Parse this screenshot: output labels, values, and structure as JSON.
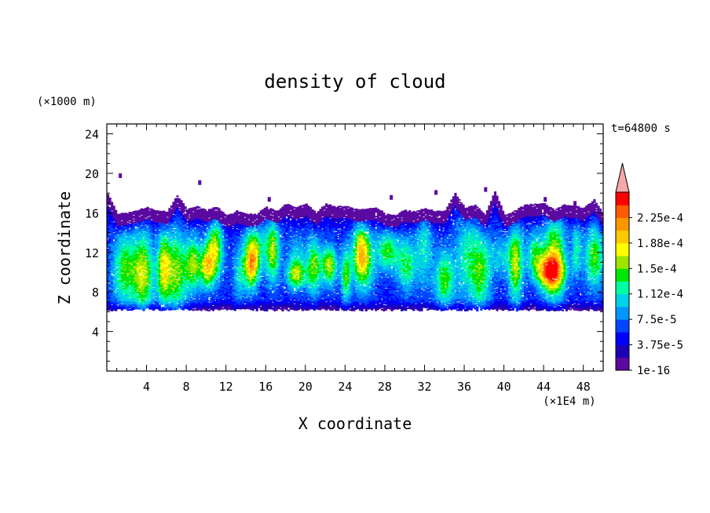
{
  "chart_data": {
    "type": "heatmap",
    "title": "density of cloud",
    "xlabel": "X coordinate",
    "ylabel": "Z coordinate",
    "x_unit": "(×1E4 m)",
    "y_unit": "(×1000 m)",
    "time_label": "t=64800 s",
    "xlim": [
      0,
      50
    ],
    "ylim": [
      0,
      25
    ],
    "x_ticks": [
      4,
      8,
      12,
      16,
      20,
      24,
      28,
      32,
      36,
      40,
      44,
      48
    ],
    "x_tick_labels": [
      "4",
      "8",
      "12",
      "16",
      "20",
      "24",
      "28",
      "32",
      "36",
      "40",
      "44",
      "48"
    ],
    "y_ticks": [
      4,
      8,
      12,
      16,
      20,
      24
    ],
    "y_tick_labels": [
      "4",
      "8",
      "12",
      "16",
      "20",
      "24"
    ],
    "cloud_base": 6.2,
    "cloud_top_typical": 16.3,
    "colorbar": {
      "levels": [
        1e-16,
        1.875e-05,
        3.75e-05,
        5.625e-05,
        7.5e-05,
        9.375e-05,
        0.0001125,
        0.00013125,
        0.00015,
        0.00016875,
        0.0001875,
        0.00020625,
        0.000225,
        0.00024375
      ],
      "labels": [
        "1e-16",
        "3.75e-5",
        "7.5e-5",
        "1.12e-4",
        "1.5e-4",
        "1.88e-4",
        "2.25e-4"
      ],
      "label_level_index": [
        0,
        2,
        4,
        6,
        8,
        10,
        12
      ],
      "colors": [
        "#5a0aa0",
        "#1e00b4",
        "#0000ff",
        "#0046ff",
        "#0096ff",
        "#00d2e6",
        "#00ffa0",
        "#00e600",
        "#9be600",
        "#ffff00",
        "#ffc800",
        "#ff9600",
        "#ff5a00",
        "#ff0000"
      ],
      "overflow_color": "#f6a8a8"
    },
    "grid": false
  }
}
